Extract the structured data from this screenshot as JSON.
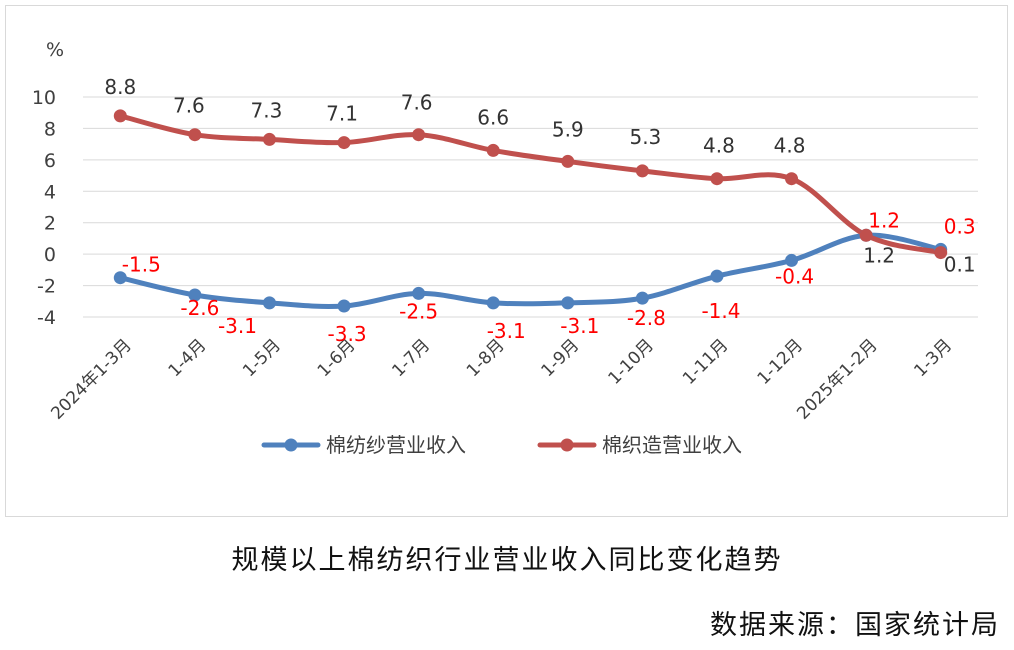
{
  "caption": {
    "title": "规模以上棉纺织行业营业收入同比变化趋势",
    "source": "数据来源：国家统计局"
  },
  "colors": {
    "series1": "#4f81bd",
    "series2": "#c0504d",
    "series1_labels": "#ff0000",
    "series2_labels": "#333333",
    "grid": "#d9d9d9",
    "axis_text": "#404040"
  },
  "chart_data": {
    "type": "line",
    "title": "",
    "xlabel": "",
    "ylabel": "%",
    "ylim": [
      -4,
      10
    ],
    "yticks": [
      "10",
      "8",
      "6",
      "4",
      "2",
      "0",
      "-2",
      "-4"
    ],
    "grid": true,
    "legend_position": "bottom",
    "categories": [
      "2024年1-3月",
      "1-4月",
      "1-5月",
      "1-6月",
      "1-7月",
      "1-8月",
      "1-9月",
      "1-10月",
      "1-11月",
      "1-12月",
      "2025年1-2月",
      "1-3月"
    ],
    "series": [
      {
        "name": "棉纺纱营业收入",
        "values": [
          -1.5,
          -2.6,
          -3.1,
          -3.3,
          -2.5,
          -3.1,
          -3.1,
          -2.8,
          -1.4,
          -0.4,
          1.2,
          0.3
        ],
        "labels": [
          "-1.5",
          "-2.6",
          "-3.1",
          "-3.3",
          "-2.5",
          "-3.1",
          "-3.1",
          "-2.8",
          "-1.4",
          "-0.4",
          "1.2",
          "0.3"
        ]
      },
      {
        "name": "棉织造营业收入",
        "values": [
          8.8,
          7.6,
          7.3,
          7.1,
          7.6,
          6.6,
          5.9,
          5.3,
          4.8,
          4.8,
          1.2,
          0.1
        ],
        "labels": [
          "8.8",
          "7.6",
          "7.3",
          "7.1",
          "7.6",
          "6.6",
          "5.9",
          "5.3",
          "4.8",
          "4.8",
          "1.2",
          "0.1"
        ]
      }
    ]
  }
}
